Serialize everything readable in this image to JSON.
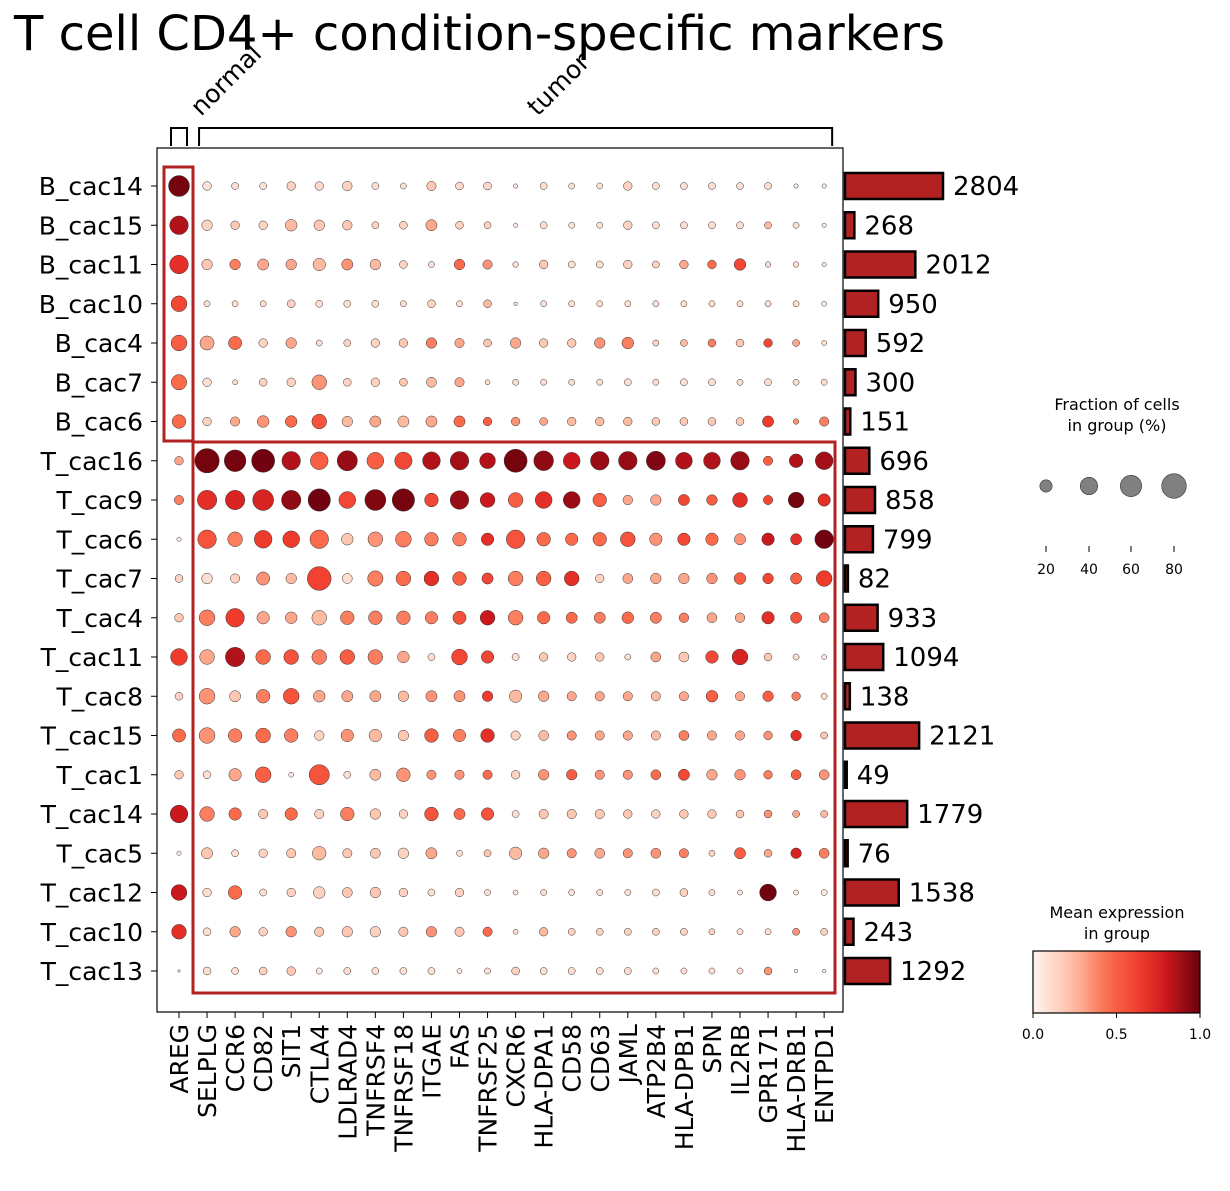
{
  "title": "T cell CD4+ condition-specific markers",
  "chart_data": {
    "type": "dotplot",
    "groups": [
      "B_cac14",
      "B_cac15",
      "B_cac11",
      "B_cac10",
      "B_cac4",
      "B_cac7",
      "B_cac6",
      "T_cac16",
      "T_cac9",
      "T_cac6",
      "T_cac7",
      "T_cac4",
      "T_cac11",
      "T_cac8",
      "T_cac15",
      "T_cac1",
      "T_cac14",
      "T_cac5",
      "T_cac12",
      "T_cac10",
      "T_cac13"
    ],
    "genes": [
      "AREG",
      "SELPLG",
      "CCR6",
      "CD82",
      "SIT1",
      "CTLA4",
      "LDLRAD4",
      "TNFRSF4",
      "TNFRSF18",
      "ITGAE",
      "FAS",
      "TNFRSF25",
      "CXCR6",
      "HLA-DPA1",
      "CD58",
      "CD63",
      "JAML",
      "ATP2B4",
      "HLA-DPB1",
      "SPN",
      "IL2RB",
      "GPR171",
      "HLA-DRB1",
      "ENTPD1"
    ],
    "gene_groups": [
      {
        "label": "normal",
        "start": 0,
        "end": 0
      },
      {
        "label": "tumor",
        "start": 1,
        "end": 23
      }
    ],
    "counts": [
      2804,
      268,
      2012,
      950,
      592,
      300,
      151,
      696,
      858,
      799,
      82,
      933,
      1094,
      138,
      2121,
      49,
      1779,
      76,
      1538,
      243,
      1292
    ],
    "fraction": [
      [
        70,
        12,
        8,
        8,
        12,
        12,
        15,
        8,
        6,
        14,
        10,
        10,
        3,
        8,
        6,
        6,
        12,
        8,
        8,
        8,
        8,
        8,
        3,
        3
      ],
      [
        55,
        18,
        12,
        12,
        22,
        18,
        15,
        8,
        10,
        20,
        10,
        8,
        3,
        8,
        6,
        6,
        12,
        8,
        8,
        8,
        8,
        8,
        6,
        3
      ],
      [
        55,
        18,
        18,
        20,
        18,
        25,
        20,
        18,
        10,
        6,
        18,
        14,
        5,
        12,
        8,
        8,
        12,
        8,
        12,
        12,
        22,
        5,
        5,
        3
      ],
      [
        40,
        6,
        6,
        6,
        10,
        8,
        8,
        8,
        6,
        10,
        6,
        10,
        2,
        6,
        6,
        6,
        6,
        6,
        6,
        6,
        6,
        6,
        6,
        4
      ],
      [
        40,
        32,
        28,
        12,
        18,
        6,
        8,
        12,
        12,
        18,
        14,
        10,
        18,
        12,
        12,
        18,
        22,
        6,
        8,
        10,
        10,
        12,
        8,
        4
      ],
      [
        38,
        12,
        4,
        10,
        12,
        35,
        10,
        12,
        10,
        16,
        14,
        4,
        6,
        6,
        6,
        6,
        8,
        6,
        8,
        8,
        6,
        8,
        6,
        6
      ],
      [
        30,
        12,
        14,
        22,
        22,
        35,
        18,
        20,
        20,
        20,
        20,
        12,
        12,
        10,
        12,
        12,
        12,
        10,
        10,
        10,
        10,
        20,
        5,
        14
      ],
      [
        12,
        95,
        75,
        85,
        55,
        50,
        65,
        45,
        48,
        50,
        55,
        40,
        85,
        62,
        45,
        55,
        55,
        58,
        45,
        45,
        55,
        14,
        30,
        50
      ],
      [
        14,
        60,
        60,
        70,
        60,
        80,
        45,
        70,
        80,
        30,
        55,
        35,
        35,
        45,
        45,
        30,
        15,
        18,
        20,
        18,
        35,
        14,
        40,
        25
      ],
      [
        3,
        55,
        35,
        50,
        45,
        55,
        22,
        35,
        40,
        30,
        30,
        25,
        55,
        30,
        25,
        30,
        35,
        25,
        25,
        25,
        20,
        25,
        20,
        55
      ],
      [
        10,
        18,
        14,
        28,
        18,
        90,
        16,
        38,
        35,
        35,
        30,
        20,
        35,
        35,
        35,
        12,
        16,
        18,
        18,
        18,
        22,
        18,
        20,
        40
      ],
      [
        12,
        40,
        55,
        25,
        22,
        35,
        30,
        30,
        30,
        25,
        28,
        35,
        35,
        25,
        20,
        20,
        22,
        20,
        15,
        16,
        15,
        25,
        20,
        16
      ],
      [
        45,
        35,
        60,
        35,
        35,
        35,
        35,
        35,
        22,
        8,
        40,
        25,
        8,
        12,
        12,
        12,
        6,
        16,
        16,
        25,
        40,
        10,
        6,
        4
      ],
      [
        10,
        40,
        20,
        30,
        40,
        22,
        20,
        20,
        18,
        20,
        20,
        18,
        25,
        18,
        14,
        14,
        14,
        14,
        14,
        22,
        14,
        18,
        12,
        6
      ],
      [
        28,
        40,
        30,
        35,
        30,
        15,
        25,
        25,
        18,
        30,
        25,
        30,
        14,
        16,
        14,
        14,
        14,
        14,
        16,
        14,
        14,
        12,
        18,
        8
      ],
      [
        12,
        10,
        25,
        40,
        4,
        65,
        8,
        20,
        30,
        14,
        14,
        14,
        12,
        18,
        18,
        14,
        14,
        16,
        20,
        18,
        18,
        12,
        16,
        16
      ],
      [
        50,
        35,
        25,
        14,
        25,
        14,
        30,
        18,
        12,
        30,
        20,
        25,
        8,
        14,
        14,
        14,
        12,
        12,
        12,
        12,
        10,
        10,
        8,
        8
      ],
      [
        3,
        20,
        8,
        12,
        14,
        30,
        14,
        16,
        18,
        20,
        6,
        8,
        25,
        18,
        14,
        16,
        14,
        16,
        14,
        6,
        20,
        10,
        18,
        16
      ],
      [
        40,
        12,
        30,
        8,
        12,
        22,
        16,
        18,
        12,
        8,
        12,
        6,
        4,
        6,
        6,
        6,
        6,
        8,
        10,
        6,
        4,
        45,
        4,
        6
      ],
      [
        35,
        10,
        18,
        12,
        18,
        14,
        18,
        18,
        14,
        18,
        14,
        14,
        4,
        12,
        8,
        8,
        8,
        8,
        8,
        6,
        6,
        6,
        8,
        8
      ],
      [
        1,
        10,
        8,
        10,
        12,
        6,
        8,
        8,
        8,
        8,
        4,
        6,
        10,
        8,
        8,
        8,
        8,
        6,
        6,
        6,
        6,
        10,
        2,
        2
      ]
    ],
    "expression": [
      [
        0.97,
        0.08,
        0.1,
        0.08,
        0.15,
        0.12,
        0.15,
        0.1,
        0.08,
        0.2,
        0.12,
        0.12,
        0.05,
        0.1,
        0.08,
        0.08,
        0.15,
        0.1,
        0.1,
        0.1,
        0.1,
        0.1,
        0.05,
        0.05
      ],
      [
        0.85,
        0.15,
        0.2,
        0.15,
        0.25,
        0.2,
        0.2,
        0.15,
        0.15,
        0.3,
        0.15,
        0.15,
        0.05,
        0.1,
        0.08,
        0.08,
        0.15,
        0.1,
        0.1,
        0.1,
        0.1,
        0.25,
        0.1,
        0.05
      ],
      [
        0.7,
        0.2,
        0.4,
        0.3,
        0.3,
        0.25,
        0.35,
        0.25,
        0.15,
        0.1,
        0.45,
        0.35,
        0.1,
        0.2,
        0.1,
        0.1,
        0.15,
        0.15,
        0.3,
        0.45,
        0.6,
        0.1,
        0.1,
        0.05
      ],
      [
        0.6,
        0.1,
        0.1,
        0.1,
        0.15,
        0.1,
        0.1,
        0.1,
        0.1,
        0.15,
        0.1,
        0.25,
        0.05,
        0.1,
        0.1,
        0.1,
        0.1,
        0.1,
        0.1,
        0.1,
        0.1,
        0.1,
        0.1,
        0.05
      ],
      [
        0.5,
        0.3,
        0.45,
        0.15,
        0.3,
        0.1,
        0.15,
        0.15,
        0.2,
        0.4,
        0.3,
        0.2,
        0.3,
        0.2,
        0.2,
        0.35,
        0.4,
        0.15,
        0.25,
        0.4,
        0.2,
        0.6,
        0.3,
        0.1
      ],
      [
        0.45,
        0.1,
        0.1,
        0.15,
        0.15,
        0.35,
        0.15,
        0.15,
        0.2,
        0.25,
        0.3,
        0.1,
        0.1,
        0.1,
        0.1,
        0.1,
        0.1,
        0.1,
        0.1,
        0.1,
        0.1,
        0.1,
        0.1,
        0.1
      ],
      [
        0.45,
        0.15,
        0.3,
        0.35,
        0.45,
        0.55,
        0.25,
        0.3,
        0.25,
        0.3,
        0.45,
        0.5,
        0.35,
        0.3,
        0.25,
        0.25,
        0.25,
        0.2,
        0.2,
        0.2,
        0.2,
        0.65,
        0.35,
        0.4
      ],
      [
        0.3,
        0.97,
        0.97,
        0.98,
        0.85,
        0.5,
        0.9,
        0.5,
        0.6,
        0.85,
        0.88,
        0.85,
        0.97,
        0.92,
        0.8,
        0.9,
        0.9,
        0.95,
        0.85,
        0.85,
        0.9,
        0.5,
        0.85,
        0.88
      ],
      [
        0.4,
        0.7,
        0.75,
        0.75,
        0.92,
        0.98,
        0.6,
        0.95,
        0.97,
        0.6,
        0.9,
        0.8,
        0.5,
        0.7,
        0.9,
        0.5,
        0.3,
        0.3,
        0.6,
        0.5,
        0.7,
        0.6,
        0.97,
        0.7
      ],
      [
        0.05,
        0.55,
        0.4,
        0.65,
        0.65,
        0.45,
        0.2,
        0.35,
        0.4,
        0.4,
        0.4,
        0.7,
        0.55,
        0.45,
        0.45,
        0.45,
        0.55,
        0.35,
        0.6,
        0.45,
        0.35,
        0.8,
        0.7,
        0.98
      ],
      [
        0.15,
        0.1,
        0.15,
        0.35,
        0.25,
        0.62,
        0.1,
        0.4,
        0.45,
        0.7,
        0.5,
        0.6,
        0.4,
        0.5,
        0.7,
        0.15,
        0.3,
        0.3,
        0.3,
        0.35,
        0.5,
        0.6,
        0.5,
        0.65
      ],
      [
        0.2,
        0.4,
        0.65,
        0.3,
        0.3,
        0.25,
        0.4,
        0.4,
        0.4,
        0.4,
        0.55,
        0.8,
        0.4,
        0.45,
        0.45,
        0.4,
        0.45,
        0.4,
        0.4,
        0.3,
        0.3,
        0.7,
        0.55,
        0.4
      ],
      [
        0.65,
        0.3,
        0.85,
        0.45,
        0.55,
        0.4,
        0.5,
        0.4,
        0.3,
        0.1,
        0.6,
        0.6,
        0.1,
        0.2,
        0.15,
        0.2,
        0.1,
        0.3,
        0.2,
        0.6,
        0.75,
        0.2,
        0.1,
        0.05
      ],
      [
        0.15,
        0.35,
        0.2,
        0.4,
        0.55,
        0.3,
        0.3,
        0.3,
        0.25,
        0.35,
        0.35,
        0.65,
        0.25,
        0.3,
        0.3,
        0.3,
        0.3,
        0.25,
        0.3,
        0.5,
        0.3,
        0.5,
        0.4,
        0.1
      ],
      [
        0.45,
        0.35,
        0.4,
        0.45,
        0.4,
        0.15,
        0.35,
        0.25,
        0.2,
        0.5,
        0.4,
        0.7,
        0.15,
        0.25,
        0.35,
        0.3,
        0.3,
        0.25,
        0.4,
        0.3,
        0.3,
        0.35,
        0.7,
        0.2
      ],
      [
        0.2,
        0.1,
        0.3,
        0.5,
        0.05,
        0.55,
        0.1,
        0.25,
        0.35,
        0.35,
        0.35,
        0.45,
        0.15,
        0.35,
        0.5,
        0.35,
        0.35,
        0.45,
        0.6,
        0.3,
        0.35,
        0.4,
        0.5,
        0.35
      ],
      [
        0.8,
        0.4,
        0.45,
        0.2,
        0.45,
        0.15,
        0.4,
        0.2,
        0.15,
        0.55,
        0.45,
        0.55,
        0.1,
        0.2,
        0.2,
        0.2,
        0.2,
        0.15,
        0.2,
        0.2,
        0.2,
        0.35,
        0.3,
        0.25
      ],
      [
        0.05,
        0.2,
        0.1,
        0.15,
        0.2,
        0.25,
        0.2,
        0.2,
        0.15,
        0.3,
        0.1,
        0.2,
        0.25,
        0.3,
        0.35,
        0.3,
        0.35,
        0.35,
        0.4,
        0.15,
        0.5,
        0.3,
        0.75,
        0.4
      ],
      [
        0.8,
        0.1,
        0.45,
        0.1,
        0.15,
        0.15,
        0.2,
        0.2,
        0.15,
        0.1,
        0.15,
        0.1,
        0.05,
        0.1,
        0.1,
        0.1,
        0.1,
        0.1,
        0.15,
        0.1,
        0.05,
        0.98,
        0.05,
        0.05
      ],
      [
        0.7,
        0.1,
        0.3,
        0.15,
        0.35,
        0.2,
        0.2,
        0.15,
        0.2,
        0.35,
        0.2,
        0.45,
        0.1,
        0.25,
        0.15,
        0.15,
        0.15,
        0.15,
        0.15,
        0.15,
        0.1,
        0.1,
        0.35,
        0.15
      ],
      [
        0.02,
        0.1,
        0.1,
        0.15,
        0.2,
        0.05,
        0.1,
        0.1,
        0.1,
        0.1,
        0.05,
        0.1,
        0.15,
        0.1,
        0.1,
        0.1,
        0.1,
        0.1,
        0.1,
        0.1,
        0.1,
        0.35,
        0.02,
        0.02
      ]
    ],
    "size_legend": {
      "title_line1": "Fraction of cells",
      "title_line2": "in group (%)",
      "ticks": [
        20,
        40,
        60,
        80
      ]
    },
    "color_legend": {
      "title_line1": "Mean expression",
      "title_line2": "in group",
      "ticks": [
        "0.0",
        "0.5",
        "1.0"
      ],
      "range": [
        0,
        1
      ],
      "colormap": "Reds"
    },
    "highlight_color": "#b22222",
    "bar_color": "#b22222"
  }
}
